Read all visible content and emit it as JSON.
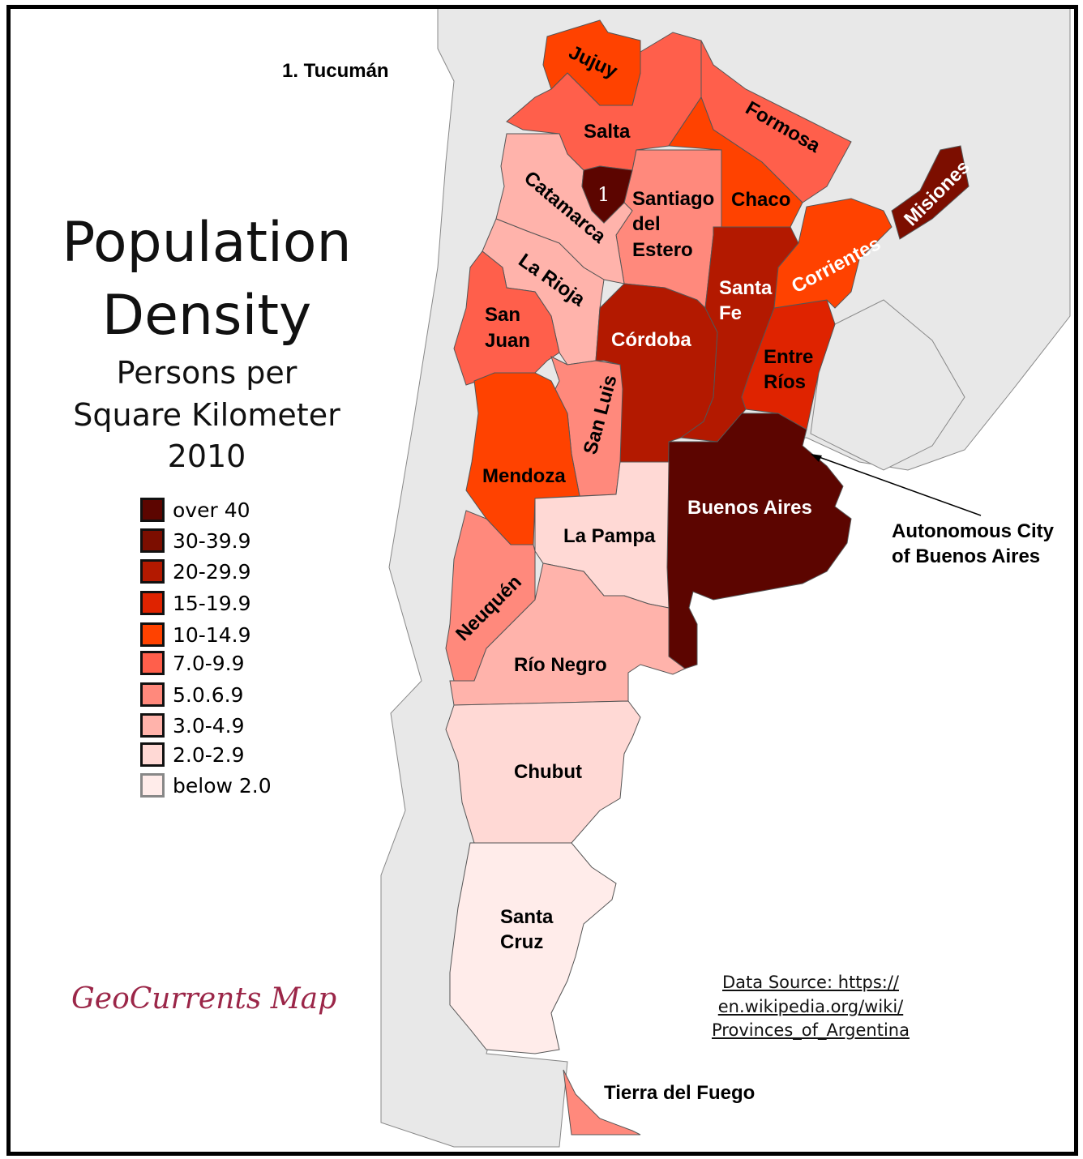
{
  "title_line1": "Population",
  "title_line2": "Density",
  "subtitle_line1": "Persons per",
  "subtitle_line2": "Square Kilometer",
  "year": "2010",
  "inset_note": "1. Tucumán",
  "tucuman_marker": "1",
  "legend": [
    {
      "label": "over 40",
      "color": "#5c0500"
    },
    {
      "label": "30-39.9",
      "color": "#7c0e00"
    },
    {
      "label": "20-29.9",
      "color": "#b31900"
    },
    {
      "label": "15-19.9",
      "color": "#df2300"
    },
    {
      "label": "10-14.9",
      "color": "#ff4200"
    },
    {
      "label": "7.0-9.9",
      "color": "#ff5f4b"
    },
    {
      "label": "5.0.6.9",
      "color": "#ff897c"
    },
    {
      "label": "3.0-4.9",
      "color": "#ffb3ab"
    },
    {
      "label": "2.0-2.9",
      "color": "#ffd9d5"
    },
    {
      "label": "below 2.0",
      "color": "#ffecea"
    }
  ],
  "provinces": {
    "jujuy": "Jujuy",
    "salta": "Salta",
    "formosa": "Formosa",
    "chaco": "Chaco",
    "misiones": "Misiones",
    "santiago1": "Santiago",
    "santiago2": "del",
    "santiago3": "Estero",
    "catamarca": "Catamarca",
    "la_rioja": "La Rioja",
    "san_juan1": "San",
    "san_juan2": "Juan",
    "cordoba": "Córdoba",
    "santa_fe1": "Santa",
    "santa_fe2": "Fe",
    "corrientes": "Corrientes",
    "entre_rios1": "Entre",
    "entre_rios2": "Ríos",
    "san_luis": "San Luis",
    "mendoza": "Mendoza",
    "buenos_aires": "Buenos Aires",
    "la_pampa": "La Pampa",
    "neuquen": "Neuquén",
    "rio_negro": "Río Negro",
    "chubut": "Chubut",
    "santa_cruz1": "Santa",
    "santa_cruz2": "Cruz",
    "tierra_del_fuego": "Tierra del Fuego"
  },
  "caba_label1": "Autonomous City",
  "caba_label2": "of Buenos Aires",
  "source": [
    "Data Source: https://",
    "en.wikipedia.org/wiki/",
    "Provinces_of_Argentina"
  ],
  "credit": "GeoCurrents Map",
  "colors": {
    "neighbor": "#e8e8e8",
    "credit": "#9b2648"
  }
}
